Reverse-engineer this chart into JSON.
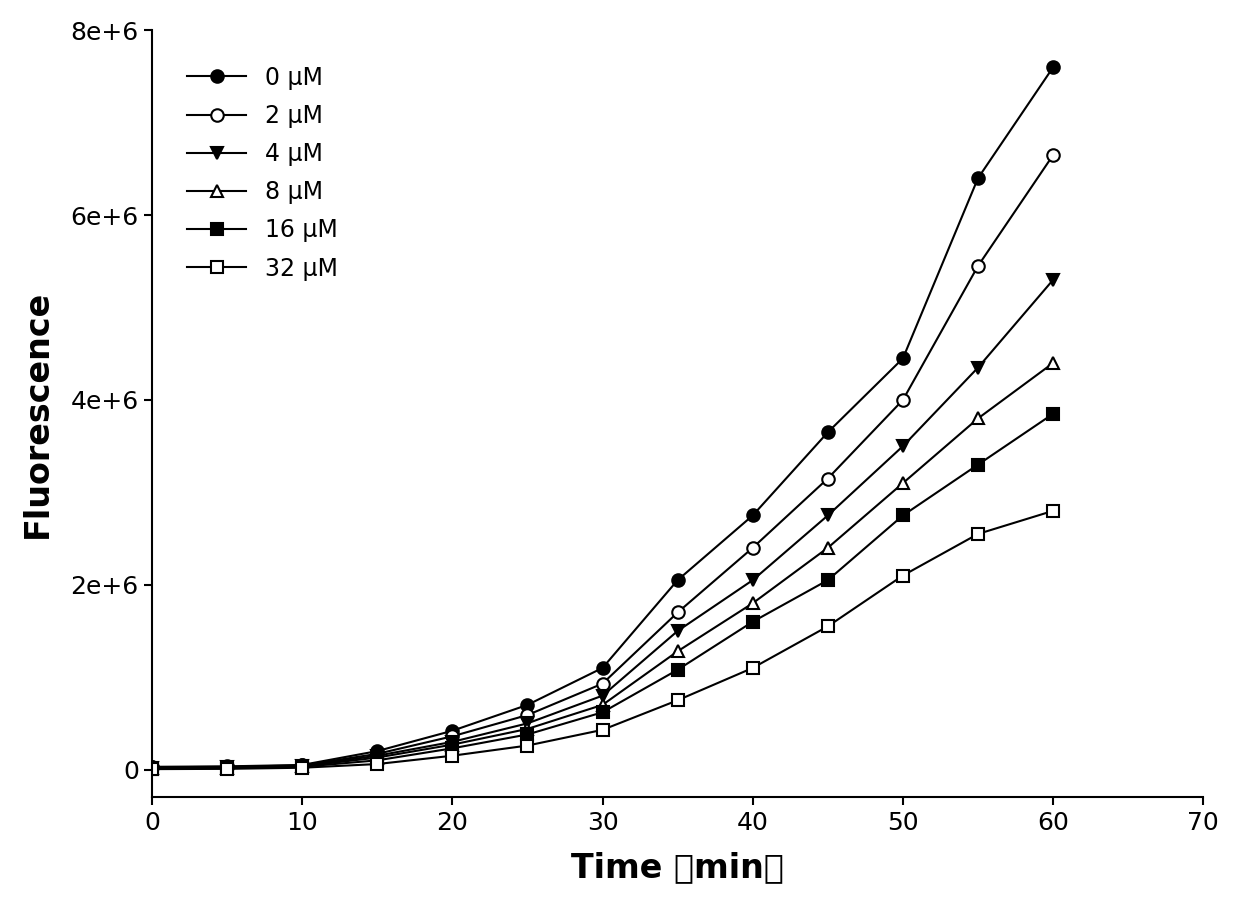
{
  "title": "",
  "xlabel": "Time （min）",
  "ylabel": "Fluorescence",
  "xlim": [
    0,
    70
  ],
  "ylim": [
    -300000.0,
    8000000.0
  ],
  "xticks": [
    0,
    10,
    20,
    30,
    40,
    50,
    60,
    70
  ],
  "yticks": [
    0,
    2000000,
    4000000,
    6000000,
    8000000
  ],
  "ytick_labels": [
    "0",
    "2e+6",
    "4e+6",
    "6e+6",
    "8e+6"
  ],
  "series": [
    {
      "label": "0 μM",
      "marker": "o",
      "fillstyle": "full",
      "x": [
        0,
        5,
        10,
        15,
        20,
        25,
        30,
        35,
        40,
        45,
        50,
        55,
        60
      ],
      "y": [
        30000,
        35000,
        50000,
        200000,
        420000,
        700000,
        1100000,
        2050000,
        2750000,
        3650000,
        4450000,
        6400000,
        7600000
      ]
    },
    {
      "label": "2 μM",
      "marker": "o",
      "fillstyle": "none",
      "x": [
        0,
        5,
        10,
        15,
        20,
        25,
        30,
        35,
        40,
        45,
        50,
        55,
        60
      ],
      "y": [
        25000,
        30000,
        45000,
        170000,
        360000,
        590000,
        930000,
        1700000,
        2400000,
        3150000,
        4000000,
        5450000,
        6650000
      ]
    },
    {
      "label": "4 μM",
      "marker": "v",
      "fillstyle": "full",
      "x": [
        0,
        5,
        10,
        15,
        20,
        25,
        30,
        35,
        40,
        45,
        50,
        55,
        60
      ],
      "y": [
        20000,
        25000,
        40000,
        150000,
        300000,
        500000,
        800000,
        1500000,
        2050000,
        2750000,
        3500000,
        4350000,
        5300000
      ]
    },
    {
      "label": "8 μM",
      "marker": "^",
      "fillstyle": "none",
      "x": [
        0,
        5,
        10,
        15,
        20,
        25,
        30,
        35,
        40,
        45,
        50,
        55,
        60
      ],
      "y": [
        15000,
        20000,
        35000,
        130000,
        270000,
        440000,
        700000,
        1280000,
        1800000,
        2400000,
        3100000,
        3800000,
        4400000
      ]
    },
    {
      "label": "16 μM",
      "marker": "s",
      "fillstyle": "full",
      "x": [
        0,
        5,
        10,
        15,
        20,
        25,
        30,
        35,
        40,
        45,
        50,
        55,
        60
      ],
      "y": [
        10000,
        15000,
        30000,
        100000,
        230000,
        380000,
        620000,
        1080000,
        1600000,
        2050000,
        2750000,
        3300000,
        3850000
      ]
    },
    {
      "label": "32 μM",
      "marker": "s",
      "fillstyle": "none",
      "x": [
        0,
        5,
        10,
        15,
        20,
        25,
        30,
        35,
        40,
        45,
        50,
        55,
        60
      ],
      "y": [
        5000,
        8000,
        20000,
        60000,
        150000,
        260000,
        430000,
        750000,
        1100000,
        1550000,
        2100000,
        2550000,
        2800000
      ]
    }
  ],
  "background_color": "#ffffff",
  "font_color": "#000000",
  "line_width": 1.5,
  "marker_size": 9,
  "legend_fontsize": 17,
  "axis_label_fontsize": 24,
  "tick_fontsize": 18
}
